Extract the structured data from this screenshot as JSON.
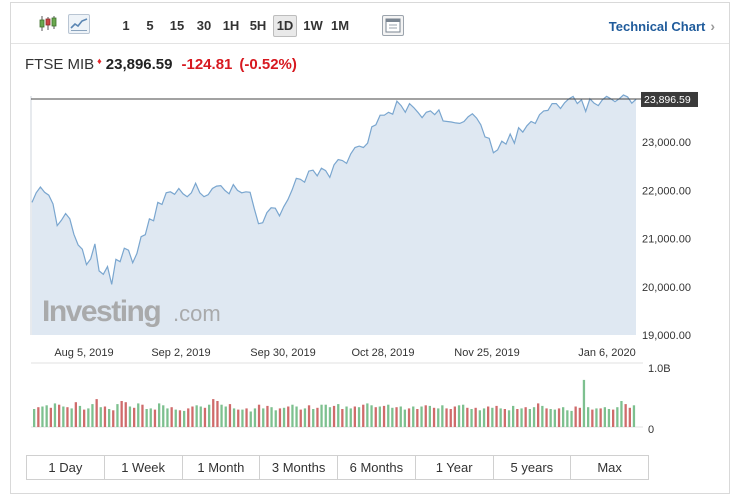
{
  "toolbar": {
    "chart_type_buttons": [
      {
        "icon": "candlestick-icon"
      },
      {
        "icon": "line-chart-icon",
        "active": true
      }
    ],
    "timeframes": [
      {
        "label": "1"
      },
      {
        "label": "5"
      },
      {
        "label": "15"
      },
      {
        "label": "30"
      },
      {
        "label": "1H"
      },
      {
        "label": "5H"
      },
      {
        "label": "1D",
        "active": true
      },
      {
        "label": "1W"
      },
      {
        "label": "1M"
      }
    ],
    "settings_icon": "settings-panel-icon",
    "technical_chart_label": "Technical Chart",
    "technical_chart_icon": "chevron-right-icon"
  },
  "quote": {
    "name": "FTSE MIB",
    "marker": "♦",
    "last": "23,896.59",
    "change": "-124.81",
    "change_pct": "(-0.52%)",
    "change_color": "#d71920"
  },
  "chart_data": {
    "type": "area",
    "x_tick_labels": [
      "Aug 5, 2019",
      "Sep 2, 2019",
      "Sep 30, 2019",
      "Oct 28, 2019",
      "Nov 25, 2019",
      "Jan 6, 2020"
    ],
    "y_tick_labels": [
      "23,000.00",
      "22,000.00",
      "21,000.00",
      "20,000.00",
      "19,000.00"
    ],
    "y_ticks": [
      23000,
      22000,
      21000,
      20000,
      19000
    ],
    "ylim": [
      19000,
      24300
    ],
    "last_value_label": "23,896.59",
    "last_value": 23896.59,
    "price_series": [
      21750,
      21950,
      22070,
      21960,
      21900,
      21720,
      21270,
      21380,
      21520,
      21410,
      21090,
      20870,
      20780,
      20460,
      20580,
      20890,
      20330,
      20260,
      20420,
      20050,
      20570,
      20520,
      20800,
      20760,
      20500,
      20690,
      21040,
      21080,
      21410,
      21370,
      21750,
      21710,
      21950,
      21970,
      21920,
      22040,
      21930,
      21870,
      21950,
      22150,
      21950,
      21870,
      21910,
      22040,
      22090,
      22100,
      22000,
      21930,
      22120,
      22000,
      21950,
      21970,
      21960,
      21620,
      21310,
      21330,
      21540,
      21640,
      21630,
      21470,
      21660,
      21810,
      22010,
      22250,
      22230,
      22170,
      22400,
      22420,
      22300,
      22460,
      22410,
      22270,
      22530,
      22640,
      22620,
      22560,
      22760,
      22890,
      22920,
      22890,
      22980,
      23320,
      23360,
      23560,
      23560,
      23620,
      23580,
      23850,
      23760,
      23620,
      23800,
      23720,
      23620,
      23510,
      23620,
      23650,
      23570,
      23670,
      23440,
      23430,
      23420,
      23400,
      23390,
      23430,
      23530,
      23590,
      23500,
      23360,
      23110,
      23080,
      22780,
      22840,
      23020,
      22960,
      23170,
      22980,
      23300,
      23210,
      23340,
      23430,
      23390,
      23570,
      23650,
      23660,
      23800,
      23800,
      23700,
      23820,
      23900,
      23950,
      23800,
      23880,
      23640,
      23900,
      23810,
      23760,
      23880,
      23950,
      23900,
      23840,
      23900,
      23980,
      23940,
      23810,
      23890
    ],
    "volume_axis_labels": [
      "1.0B",
      "0"
    ],
    "volume_max": 1000000000,
    "volume_series": [
      0.29,
      0.32,
      0.33,
      0.35,
      0.31,
      0.38,
      0.36,
      0.33,
      0.32,
      0.3,
      0.4,
      0.34,
      0.28,
      0.3,
      0.37,
      0.45,
      0.32,
      0.33,
      0.29,
      0.27,
      0.37,
      0.42,
      0.4,
      0.33,
      0.31,
      0.38,
      0.36,
      0.29,
      0.3,
      0.28,
      0.38,
      0.35,
      0.3,
      0.32,
      0.28,
      0.27,
      0.26,
      0.3,
      0.33,
      0.35,
      0.33,
      0.31,
      0.36,
      0.45,
      0.42,
      0.36,
      0.33,
      0.37,
      0.3,
      0.28,
      0.28,
      0.3,
      0.25,
      0.3,
      0.36,
      0.3,
      0.34,
      0.32,
      0.27,
      0.3,
      0.31,
      0.33,
      0.36,
      0.33,
      0.28,
      0.3,
      0.35,
      0.29,
      0.31,
      0.36,
      0.36,
      0.32,
      0.34,
      0.37,
      0.29,
      0.33,
      0.3,
      0.33,
      0.32,
      0.36,
      0.38,
      0.35,
      0.32,
      0.33,
      0.34,
      0.36,
      0.31,
      0.32,
      0.33,
      0.28,
      0.3,
      0.33,
      0.29,
      0.33,
      0.35,
      0.34,
      0.31,
      0.3,
      0.35,
      0.3,
      0.29,
      0.33,
      0.35,
      0.36,
      0.31,
      0.29,
      0.31,
      0.27,
      0.3,
      0.33,
      0.31,
      0.34,
      0.3,
      0.29,
      0.27,
      0.34,
      0.29,
      0.3,
      0.32,
      0.29,
      0.32,
      0.38,
      0.34,
      0.3,
      0.29,
      0.28,
      0.3,
      0.32,
      0.27,
      0.26,
      0.33,
      0.31,
      0.76,
      0.32,
      0.28,
      0.3,
      0.3,
      0.32,
      0.29,
      0.28,
      0.32,
      0.42,
      0.37,
      0.31,
      0.35
    ],
    "volume_up": [
      1,
      0,
      1,
      1,
      0,
      1,
      0,
      1,
      0,
      1,
      0,
      1,
      0,
      1,
      1,
      0,
      1,
      0,
      1,
      0,
      1,
      0,
      0,
      1,
      0,
      1,
      0,
      1,
      1,
      0,
      1,
      1,
      1,
      0,
      1,
      0,
      1,
      0,
      0,
      1,
      1,
      0,
      1,
      0,
      0,
      1,
      1,
      0,
      1,
      0,
      1,
      0,
      1,
      1,
      0,
      1,
      0,
      1,
      1,
      0,
      1,
      0,
      1,
      1,
      0,
      1,
      0,
      1,
      0,
      1,
      1,
      1,
      0,
      1,
      0,
      1,
      1,
      0,
      1,
      0,
      1,
      1,
      0,
      1,
      0,
      1,
      1,
      0,
      1,
      1,
      0,
      1,
      0,
      1,
      0,
      1,
      0,
      1,
      1,
      0,
      0,
      0,
      1,
      1,
      0,
      1,
      0,
      1,
      1,
      0,
      1,
      0,
      1,
      0,
      1,
      1,
      0,
      1,
      0,
      1,
      1,
      0,
      1,
      0,
      1,
      1,
      0,
      1,
      1,
      1,
      0,
      0,
      1,
      1,
      0,
      1,
      0,
      1,
      1,
      0,
      1,
      1,
      0,
      0,
      1
    ],
    "colors": {
      "line": "#7aa6cf",
      "area": "#dfe8f2",
      "up_volume": "#7dc08f",
      "down_volume": "#cf6b6b",
      "last_value_bg": "#3a3a3a"
    },
    "watermark": "Investing.com"
  },
  "ranges": [
    {
      "label": "1 Day"
    },
    {
      "label": "1 Week"
    },
    {
      "label": "1 Month"
    },
    {
      "label": "3 Months"
    },
    {
      "label": "6 Months"
    },
    {
      "label": "1 Year"
    },
    {
      "label": "5 years"
    },
    {
      "label": "Max"
    }
  ]
}
